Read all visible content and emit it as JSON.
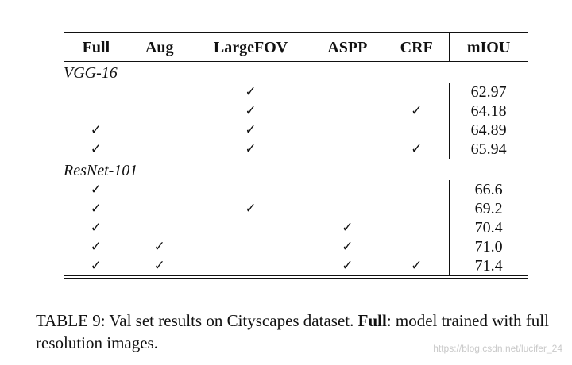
{
  "table": {
    "columns": [
      "Full",
      "Aug",
      "LargeFOV",
      "ASPP",
      "CRF",
      "mIOU"
    ],
    "check_symbol": "✓",
    "groups": [
      {
        "name": "VGG-16",
        "rows": [
          {
            "full": false,
            "aug": false,
            "largefov": true,
            "aspp": false,
            "crf": false,
            "miou": "62.97"
          },
          {
            "full": false,
            "aug": false,
            "largefov": true,
            "aspp": false,
            "crf": true,
            "miou": "64.18"
          },
          {
            "full": true,
            "aug": false,
            "largefov": true,
            "aspp": false,
            "crf": false,
            "miou": "64.89"
          },
          {
            "full": true,
            "aug": false,
            "largefov": true,
            "aspp": false,
            "crf": true,
            "miou": "65.94"
          }
        ]
      },
      {
        "name": "ResNet-101",
        "rows": [
          {
            "full": true,
            "aug": false,
            "largefov": false,
            "aspp": false,
            "crf": false,
            "miou": "66.6"
          },
          {
            "full": true,
            "aug": false,
            "largefov": true,
            "aspp": false,
            "crf": false,
            "miou": "69.2"
          },
          {
            "full": true,
            "aug": false,
            "largefov": false,
            "aspp": true,
            "crf": false,
            "miou": "70.4"
          },
          {
            "full": true,
            "aug": true,
            "largefov": false,
            "aspp": true,
            "crf": false,
            "miou": "71.0"
          },
          {
            "full": true,
            "aug": true,
            "largefov": false,
            "aspp": true,
            "crf": true,
            "miou": "71.4"
          }
        ]
      }
    ]
  },
  "caption": {
    "label": "TABLE 9: Val set results on Cityscapes dataset.",
    "bold_term": "Full",
    "rest": ": model trained with full resolution images."
  },
  "watermark": "https://blog.csdn.net/lucifer_24"
}
